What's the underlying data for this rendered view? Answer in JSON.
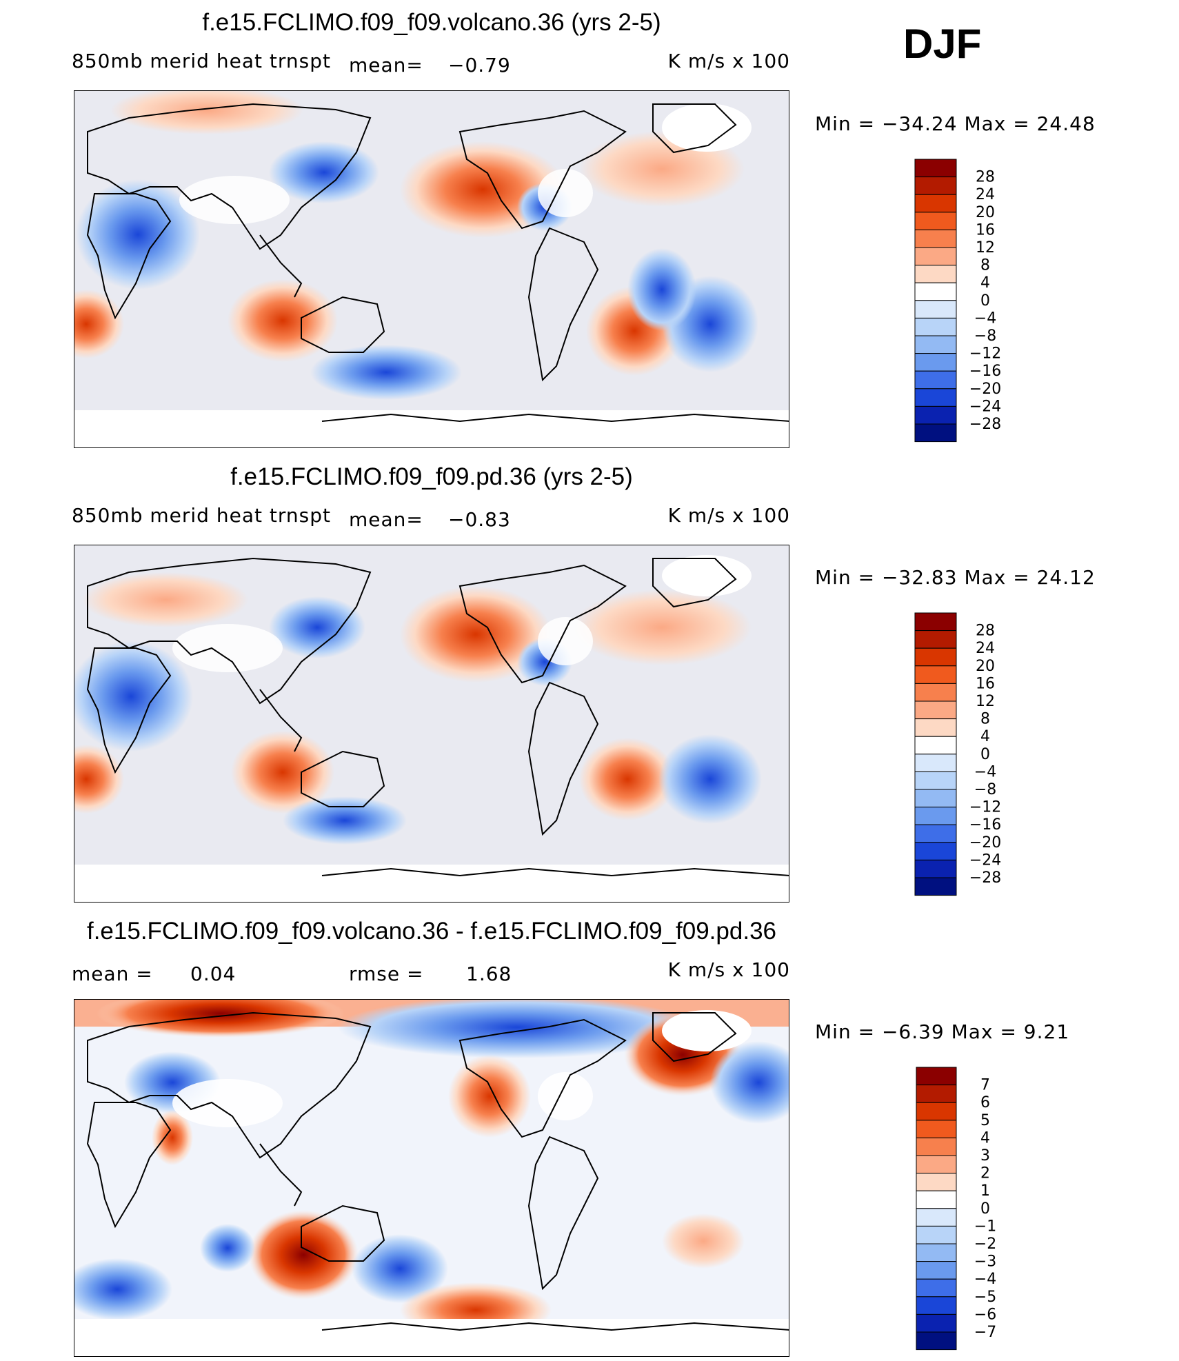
{
  "season": "DJF",
  "units": "K  m/s  x  100",
  "panels": [
    {
      "title": "f.e15.FCLIMO.f09_f09.volcano.36 (yrs 2-5)",
      "variable": "850mb  merid  heat  trnspt",
      "stat1_label": "mean=",
      "stat1_value": "−0.79",
      "minmax": "Min  =  −34.24  Max  =   24.48",
      "colorbar_labels": [
        "28",
        "24",
        "20",
        "16",
        "12",
        "8",
        "4",
        "0",
        "−4",
        "−8",
        "−12",
        "−16",
        "−20",
        "−24",
        "−28"
      ],
      "colors": [
        "#8b0000",
        "#b31b00",
        "#d93600",
        "#f05a1e",
        "#f7804d",
        "#fba985",
        "#fdd9c4",
        "#ffffff",
        "#d9e8fb",
        "#b8d4f8",
        "#93baf3",
        "#6a9aee",
        "#3e6ee8",
        "#1a46d8",
        "#0a22b0",
        "#001080"
      ]
    },
    {
      "title": "f.e15.FCLIMO.f09_f09.pd.36 (yrs 2-5)",
      "variable": "850mb  merid  heat  trnspt",
      "stat1_label": "mean=",
      "stat1_value": "−0.83",
      "minmax": "Min  =  −32.83  Max  =   24.12",
      "colorbar_labels": [
        "28",
        "24",
        "20",
        "16",
        "12",
        "8",
        "4",
        "0",
        "−4",
        "−8",
        "−12",
        "−16",
        "−20",
        "−24",
        "−28"
      ],
      "colors": [
        "#8b0000",
        "#b31b00",
        "#d93600",
        "#f05a1e",
        "#f7804d",
        "#fba985",
        "#fdd9c4",
        "#ffffff",
        "#d9e8fb",
        "#b8d4f8",
        "#93baf3",
        "#6a9aee",
        "#3e6ee8",
        "#1a46d8",
        "#0a22b0",
        "#001080"
      ]
    },
    {
      "title": "f.e15.FCLIMO.f09_f09.volcano.36 - f.e15.FCLIMO.f09_f09.pd.36",
      "stat1_label": "mean  =",
      "stat1_value": "0.04",
      "stat2_label": "rmse  =",
      "stat2_value": "1.68",
      "minmax": "Min  =    −6.39  Max  =    9.21",
      "colorbar_labels": [
        "7",
        "6",
        "5",
        "4",
        "3",
        "2",
        "1",
        "0",
        "−1",
        "−2",
        "−3",
        "−4",
        "−5",
        "−6",
        "−7"
      ],
      "colors": [
        "#8b0000",
        "#b31b00",
        "#d93600",
        "#f05a1e",
        "#f7804d",
        "#fba985",
        "#fdd9c4",
        "#ffffff",
        "#d9e8fb",
        "#b8d4f8",
        "#93baf3",
        "#6a9aee",
        "#3e6ee8",
        "#1a46d8",
        "#0a22b0",
        "#001080"
      ]
    }
  ]
}
